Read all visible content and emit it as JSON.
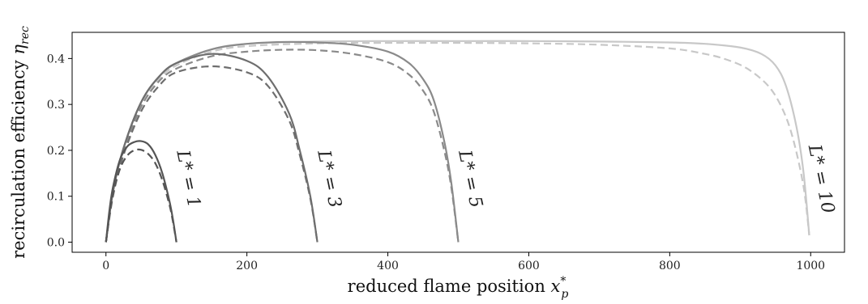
{
  "chart_data": {
    "type": "line",
    "xlabel_text": "reduced flame position ",
    "xlabel_symbol": "x",
    "xlabel_sub": "p",
    "xlabel_sup": "*",
    "ylabel_text": "recirculation efficiency ",
    "ylabel_symbol": "η",
    "ylabel_sub": "rec",
    "xlim": [
      -48,
      1048
    ],
    "ylim": [
      -0.022,
      0.457
    ],
    "xticks": [
      0,
      200,
      400,
      600,
      800,
      1000
    ],
    "yticks": [
      0.0,
      0.1,
      0.2,
      0.3,
      0.4
    ],
    "grid": false,
    "legend": "none",
    "series": [
      {
        "label": "L* = 1",
        "L": 1,
        "color": "#555555",
        "solid": {
          "x": [
            0,
            5,
            10,
            20,
            30,
            40,
            50,
            60,
            70,
            80,
            90,
            95,
            100
          ],
          "y": [
            0.0,
            0.07,
            0.12,
            0.18,
            0.208,
            0.218,
            0.22,
            0.213,
            0.19,
            0.15,
            0.09,
            0.05,
            0.0
          ]
        },
        "dashed": {
          "x": [
            0,
            5,
            10,
            20,
            30,
            40,
            50,
            60,
            70,
            80,
            90,
            95,
            100
          ],
          "y": [
            0.0,
            0.06,
            0.105,
            0.16,
            0.188,
            0.2,
            0.201,
            0.192,
            0.172,
            0.135,
            0.082,
            0.045,
            0.0
          ]
        }
      },
      {
        "label": "L* = 3",
        "L": 3,
        "color": "#6e6e6e",
        "solid": {
          "x": [
            0,
            10,
            25,
            50,
            75,
            100,
            150,
            200,
            230,
            260,
            275,
            290,
            300
          ],
          "y": [
            0.0,
            0.11,
            0.205,
            0.305,
            0.36,
            0.39,
            0.41,
            0.395,
            0.36,
            0.28,
            0.2,
            0.1,
            0.0
          ]
        },
        "dashed": {
          "x": [
            0,
            10,
            25,
            50,
            75,
            100,
            150,
            200,
            230,
            260,
            275,
            290,
            300
          ],
          "y": [
            0.0,
            0.1,
            0.19,
            0.285,
            0.34,
            0.37,
            0.383,
            0.37,
            0.34,
            0.265,
            0.19,
            0.095,
            0.0
          ]
        }
      },
      {
        "label": "L* = 5",
        "L": 5,
        "color": "#8a8a8a",
        "solid": {
          "x": [
            0,
            10,
            25,
            50,
            75,
            100,
            150,
            200,
            250,
            300,
            350,
            400,
            430,
            450,
            465,
            480,
            490,
            500
          ],
          "y": [
            0.0,
            0.11,
            0.205,
            0.305,
            0.36,
            0.39,
            0.42,
            0.432,
            0.436,
            0.435,
            0.43,
            0.415,
            0.39,
            0.355,
            0.31,
            0.22,
            0.13,
            0.0
          ]
        },
        "dashed": {
          "x": [
            0,
            10,
            25,
            50,
            75,
            100,
            150,
            200,
            250,
            300,
            350,
            400,
            430,
            450,
            465,
            480,
            490,
            500
          ],
          "y": [
            0.0,
            0.108,
            0.2,
            0.295,
            0.35,
            0.378,
            0.405,
            0.415,
            0.419,
            0.418,
            0.41,
            0.392,
            0.365,
            0.33,
            0.285,
            0.2,
            0.12,
            0.0
          ]
        }
      },
      {
        "label": "L* = 10",
        "L": 10,
        "color": "#c8c8c8",
        "solid": {
          "x": [
            0,
            10,
            25,
            50,
            75,
            100,
            150,
            200,
            300,
            400,
            500,
            600,
            700,
            800,
            850,
            900,
            930,
            950,
            965,
            980,
            990,
            998
          ],
          "y": [
            0.0,
            0.11,
            0.205,
            0.305,
            0.36,
            0.39,
            0.42,
            0.432,
            0.437,
            0.438,
            0.438,
            0.438,
            0.437,
            0.435,
            0.432,
            0.424,
            0.41,
            0.385,
            0.34,
            0.25,
            0.15,
            0.015
          ]
        },
        "dashed": {
          "x": [
            0,
            10,
            25,
            50,
            75,
            100,
            150,
            200,
            300,
            400,
            500,
            600,
            700,
            800,
            850,
            880,
            910,
            940,
            960,
            975,
            990,
            998
          ],
          "y": [
            0.0,
            0.108,
            0.2,
            0.3,
            0.355,
            0.385,
            0.415,
            0.427,
            0.433,
            0.434,
            0.434,
            0.433,
            0.43,
            0.422,
            0.41,
            0.398,
            0.378,
            0.34,
            0.29,
            0.225,
            0.12,
            0.015
          ]
        }
      }
    ]
  }
}
